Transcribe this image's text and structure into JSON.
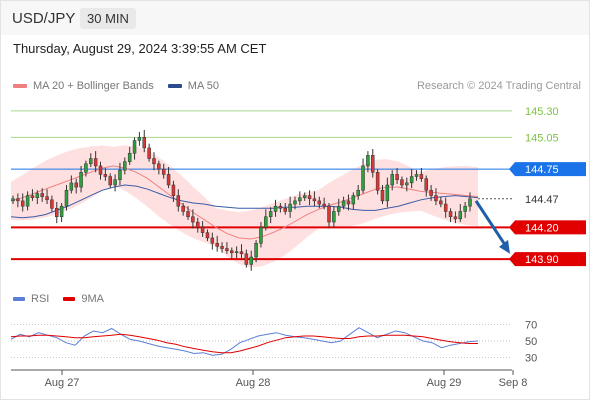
{
  "header": {
    "symbol": "USD/JPY",
    "timeframe": "30 MIN"
  },
  "datetime": "Thursday, August 29, 2024 3:39:55 AM CET",
  "legend": [
    {
      "label": "MA 20 + Bollinger Bands",
      "color": "#f08080"
    },
    {
      "label": "MA 50",
      "color": "#2b4c8c"
    }
  ],
  "copyright": "Research © 2024 Trading Central",
  "price_levels": [
    {
      "label": "145.30",
      "style": "green-text",
      "color": "#7cc242"
    },
    {
      "label": "145.05",
      "style": "green-text",
      "color": "#7cc242"
    },
    {
      "label": "144.75",
      "style": "blue-box",
      "color": "#1a73e8"
    },
    {
      "label": "144.47",
      "style": "current",
      "color": "#333333"
    },
    {
      "label": "144.20",
      "style": "red-box",
      "color": "#e00000"
    },
    {
      "label": "143.90",
      "style": "red-box",
      "color": "#e00000"
    }
  ],
  "rsi_legend": [
    {
      "label": "RSI",
      "color": "#5b7fd6"
    },
    {
      "label": "9MA",
      "color": "#e00000"
    }
  ],
  "rsi_ticks": [
    "70",
    "50",
    "30"
  ],
  "x_ticks": [
    "Aug 27",
    "Aug 28",
    "Aug 29",
    "Sep 8"
  ],
  "chart_data": {
    "type": "candlestick",
    "y_range": [
      143.75,
      145.45
    ],
    "levels": [
      145.3,
      145.05,
      144.75,
      144.47,
      144.2,
      143.9
    ],
    "closes": [
      144.47,
      144.45,
      144.4,
      144.5,
      144.48,
      144.52,
      144.49,
      144.46,
      144.38,
      144.3,
      144.4,
      144.55,
      144.62,
      144.58,
      144.72,
      144.8,
      144.85,
      144.78,
      144.7,
      144.68,
      144.6,
      144.65,
      144.74,
      144.82,
      144.9,
      145.02,
      145.05,
      144.95,
      144.85,
      144.8,
      144.75,
      144.7,
      144.6,
      144.5,
      144.4,
      144.35,
      144.3,
      144.25,
      144.2,
      144.15,
      144.1,
      144.05,
      144.02,
      144.0,
      143.98,
      143.96,
      143.97,
      143.95,
      143.85,
      143.92,
      144.05,
      144.2,
      144.3,
      144.35,
      144.4,
      144.38,
      144.35,
      144.42,
      144.45,
      144.48,
      144.5,
      144.47,
      144.45,
      144.42,
      144.4,
      144.25,
      144.35,
      144.4,
      144.45,
      144.42,
      144.5,
      144.55,
      144.78,
      144.88,
      144.72,
      144.55,
      144.45,
      144.6,
      144.7,
      144.65,
      144.6,
      144.62,
      144.68,
      144.7,
      144.66,
      144.55,
      144.5,
      144.45,
      144.42,
      144.35,
      144.3,
      144.28,
      144.35,
      144.4,
      144.47
    ],
    "ma20": [
      144.45,
      144.48,
      144.52,
      144.56,
      144.6,
      144.64,
      144.68,
      144.72,
      144.76,
      144.78,
      144.76,
      144.72,
      144.66,
      144.58,
      144.5,
      144.42,
      144.34,
      144.27,
      144.2,
      144.14,
      144.1,
      144.09,
      144.11,
      144.15,
      144.2,
      144.26,
      144.32,
      144.37,
      144.41,
      144.44,
      144.48,
      144.52,
      144.56,
      144.58,
      144.58,
      144.56,
      144.54,
      144.53,
      144.52,
      144.51,
      144.5,
      144.49
    ],
    "ma50": [
      144.3,
      144.29,
      144.3,
      144.32,
      144.36,
      144.4,
      144.45,
      144.5,
      144.55,
      144.58,
      144.6,
      144.59,
      144.56,
      144.52,
      144.48,
      144.45,
      144.43,
      144.42,
      144.4,
      144.39,
      144.38,
      144.38,
      144.38,
      144.38,
      144.39,
      144.39,
      144.4,
      144.4,
      144.4,
      144.39,
      144.37,
      144.36,
      144.36,
      144.38,
      144.4,
      144.43,
      144.46,
      144.48,
      144.49,
      144.5,
      144.49,
      144.48
    ],
    "rsi": [
      52,
      58,
      55,
      60,
      57,
      54,
      48,
      45,
      56,
      62,
      60,
      65,
      58,
      52,
      50,
      47,
      44,
      42,
      40,
      38,
      35,
      36,
      33,
      34,
      40,
      48,
      52,
      56,
      58,
      60,
      57,
      55,
      54,
      52,
      50,
      48,
      50,
      58,
      66,
      60,
      54,
      58,
      62,
      60,
      55,
      50,
      48,
      42,
      45,
      47,
      49,
      50
    ],
    "rsi_ma9": [
      55,
      56,
      56,
      57,
      57,
      56,
      55,
      54,
      54,
      55,
      56,
      57,
      58,
      57,
      55,
      53,
      51,
      48,
      46,
      43,
      41,
      39,
      37,
      36,
      36,
      38,
      41,
      44,
      48,
      51,
      54,
      55,
      56,
      56,
      55,
      54,
      53,
      53,
      55,
      56,
      56,
      57,
      57,
      57,
      56,
      55,
      53,
      51,
      49,
      48,
      47,
      47
    ],
    "forecast_arrow": {
      "from": 144.45,
      "to": 143.95
    }
  }
}
